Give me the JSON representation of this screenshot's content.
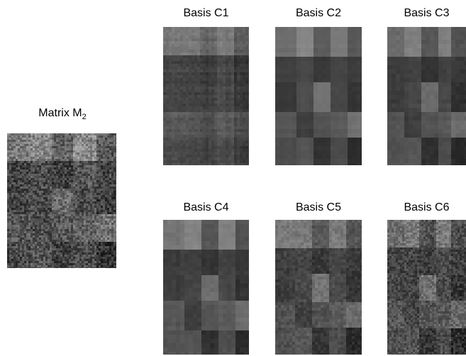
{
  "matrix": {
    "title_main": "Matrix M",
    "title_sub": "2"
  },
  "bases": [
    {
      "title": "Basis C1"
    },
    {
      "title": "Basis C2"
    },
    {
      "title": "Basis C3"
    },
    {
      "title": "Basis C4"
    },
    {
      "title": "Basis C5"
    },
    {
      "title": "Basis C6"
    }
  ]
}
